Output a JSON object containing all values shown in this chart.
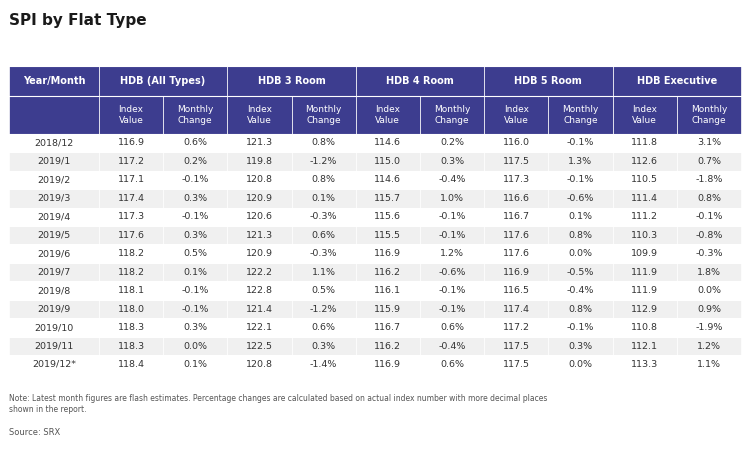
{
  "title": "SPI by Flat Type",
  "note": "Note: Latest month figures are flash estimates. Percentage changes are calculated based on actual index number with more decimal places\nshown in the report.",
  "source": "Source: SRX",
  "header_bg": "#3d3d8f",
  "header_text": "#ffffff",
  "row_bg_even": "#f0f0f0",
  "row_bg_odd": "#ffffff",
  "text_color": "#333333",
  "note_color": "#555555",
  "rows": [
    [
      "2018/12",
      "116.9",
      "0.6%",
      "121.3",
      "0.8%",
      "114.6",
      "0.2%",
      "116.0",
      "-0.1%",
      "111.8",
      "3.1%"
    ],
    [
      "2019/1",
      "117.2",
      "0.2%",
      "119.8",
      "-1.2%",
      "115.0",
      "0.3%",
      "117.5",
      "1.3%",
      "112.6",
      "0.7%"
    ],
    [
      "2019/2",
      "117.1",
      "-0.1%",
      "120.8",
      "0.8%",
      "114.6",
      "-0.4%",
      "117.3",
      "-0.1%",
      "110.5",
      "-1.8%"
    ],
    [
      "2019/3",
      "117.4",
      "0.3%",
      "120.9",
      "0.1%",
      "115.7",
      "1.0%",
      "116.6",
      "-0.6%",
      "111.4",
      "0.8%"
    ],
    [
      "2019/4",
      "117.3",
      "-0.1%",
      "120.6",
      "-0.3%",
      "115.6",
      "-0.1%",
      "116.7",
      "0.1%",
      "111.2",
      "-0.1%"
    ],
    [
      "2019/5",
      "117.6",
      "0.3%",
      "121.3",
      "0.6%",
      "115.5",
      "-0.1%",
      "117.6",
      "0.8%",
      "110.3",
      "-0.8%"
    ],
    [
      "2019/6",
      "118.2",
      "0.5%",
      "120.9",
      "-0.3%",
      "116.9",
      "1.2%",
      "117.6",
      "0.0%",
      "109.9",
      "-0.3%"
    ],
    [
      "2019/7",
      "118.2",
      "0.1%",
      "122.2",
      "1.1%",
      "116.2",
      "-0.6%",
      "116.9",
      "-0.5%",
      "111.9",
      "1.8%"
    ],
    [
      "2019/8",
      "118.1",
      "-0.1%",
      "122.8",
      "0.5%",
      "116.1",
      "-0.1%",
      "116.5",
      "-0.4%",
      "111.9",
      "0.0%"
    ],
    [
      "2019/9",
      "118.0",
      "-0.1%",
      "121.4",
      "-1.2%",
      "115.9",
      "-0.1%",
      "117.4",
      "0.8%",
      "112.9",
      "0.9%"
    ],
    [
      "2019/10",
      "118.3",
      "0.3%",
      "122.1",
      "0.6%",
      "116.7",
      "0.6%",
      "117.2",
      "-0.1%",
      "110.8",
      "-1.9%"
    ],
    [
      "2019/11",
      "118.3",
      "0.0%",
      "122.5",
      "0.3%",
      "116.2",
      "-0.4%",
      "117.5",
      "0.3%",
      "112.1",
      "1.2%"
    ],
    [
      "2019/12*",
      "118.4",
      "0.1%",
      "120.8",
      "-1.4%",
      "116.9",
      "0.6%",
      "117.5",
      "0.0%",
      "113.3",
      "1.1%"
    ]
  ],
  "group_labels": [
    "HDB (All Types)",
    "HDB 3 Room",
    "HDB 4 Room",
    "HDB 5 Room",
    "HDB Executive"
  ],
  "sub_labels": [
    "Index\nValue",
    "Monthly\nChange"
  ],
  "col_widths_rel": [
    1.4,
    1.0,
    1.0,
    1.0,
    1.0,
    1.0,
    1.0,
    1.0,
    1.0,
    1.0,
    1.0
  ]
}
